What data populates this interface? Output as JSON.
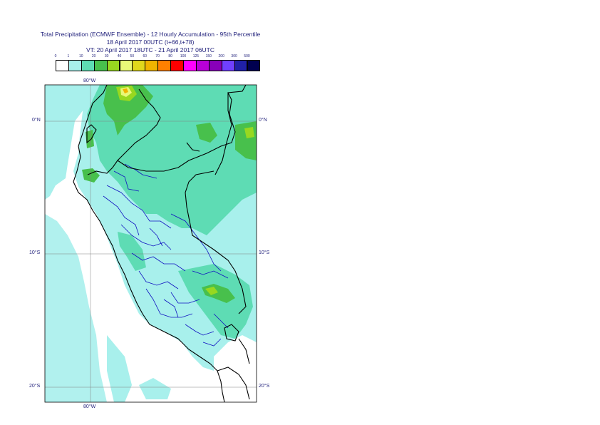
{
  "title": {
    "line1": "Total Precipitation (ECMWF Ensemble) - 12 Hourly Accumulation - 95th Percentile",
    "line2": "18 April 2017 00UTC (t+66,t+78)",
    "line3": "VT: 20 April 2017 18UTC - 21 April 2017 06UTC"
  },
  "legend": {
    "ticks": [
      "0",
      "1",
      "10",
      "20",
      "30",
      "40",
      "50",
      "60",
      "70",
      "80",
      "100",
      "125",
      "150",
      "200",
      "300",
      "500"
    ],
    "colors": [
      "#ffffff",
      "#a8f0ec",
      "#5edcb4",
      "#48c04c",
      "#98d820",
      "#e8f878",
      "#e0d81c",
      "#f0b400",
      "#ff8000",
      "#ff0000",
      "#ff00ff",
      "#b800d8",
      "#8800b8",
      "#7040ff",
      "#2020a8",
      "#000050"
    ]
  },
  "axes": {
    "lon_top": "80°W",
    "lon_bottom": "80°W",
    "lat_0_left": "0°N",
    "lat_0_right": "0°N",
    "lat_10_left": "10°S",
    "lat_10_right": "10°S",
    "lat_20_left": "20°S",
    "lat_20_right": "20°S"
  },
  "map_colors": {
    "ocean": "#ffffff",
    "light": "#a8f0ec",
    "medium": "#5edcb4",
    "green": "#48c04c",
    "yellowgreen": "#98d820",
    "yellow": "#e8f878",
    "orange": "#f0b400",
    "borders": "#000000",
    "regions": "#1010c0",
    "grid": "#808080"
  }
}
